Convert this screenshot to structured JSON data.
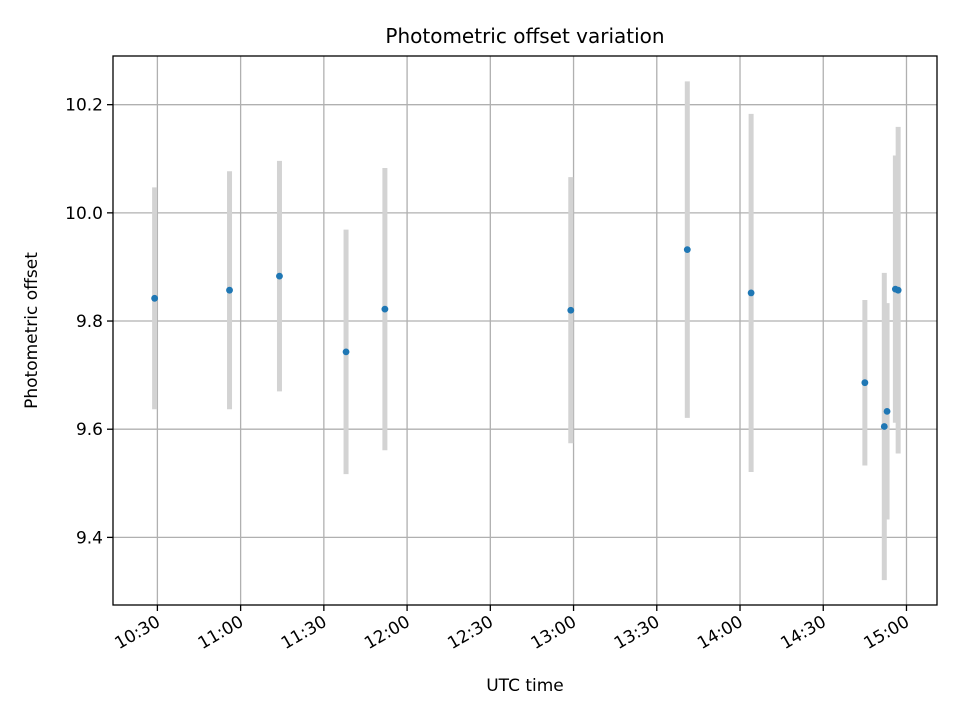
{
  "chart_data": {
    "type": "scatter",
    "title": "Photometric offset variation",
    "xlabel": "UTC time",
    "ylabel": "Photometric offset",
    "x_tick_labels": [
      "10:30",
      "11:00",
      "11:30",
      "12:00",
      "12:30",
      "13:00",
      "13:30",
      "14:00",
      "14:30",
      "15:00"
    ],
    "x_tick_minutes": [
      630,
      660,
      690,
      720,
      750,
      780,
      810,
      840,
      870,
      900
    ],
    "xlim_minutes": [
      614,
      911
    ],
    "y_ticks": [
      9.4,
      9.6,
      9.8,
      10.0,
      10.2
    ],
    "y_tick_labels": [
      "9.4",
      "9.6",
      "9.8",
      "10.0",
      "10.2"
    ],
    "ylim": [
      9.275,
      10.29
    ],
    "grid": true,
    "colors": {
      "point": "#1f77b4",
      "errorbar": "#d3d3d3",
      "grid": "#b0b0b0"
    },
    "points": [
      {
        "time": "10:29",
        "y": 9.842,
        "yerr": 0.205
      },
      {
        "time": "10:56",
        "y": 9.857,
        "yerr": 0.22
      },
      {
        "time": "11:14",
        "y": 9.883,
        "yerr": 0.213
      },
      {
        "time": "11:38",
        "y": 9.743,
        "yerr": 0.226
      },
      {
        "time": "11:52",
        "y": 9.822,
        "yerr": 0.261
      },
      {
        "time": "12:59",
        "y": 9.82,
        "yerr": 0.246
      },
      {
        "time": "13:41",
        "y": 9.932,
        "yerr": 0.311
      },
      {
        "time": "14:04",
        "y": 9.852,
        "yerr": 0.331
      },
      {
        "time": "14:45",
        "y": 9.686,
        "yerr": 0.153
      },
      {
        "time": "14:52",
        "y": 9.605,
        "yerr": 0.284
      },
      {
        "time": "14:53",
        "y": 9.633,
        "yerr": 0.2
      },
      {
        "time": "14:56",
        "y": 9.859,
        "yerr": 0.247
      },
      {
        "time": "14:57",
        "y": 9.857,
        "yerr": 0.302
      }
    ]
  }
}
